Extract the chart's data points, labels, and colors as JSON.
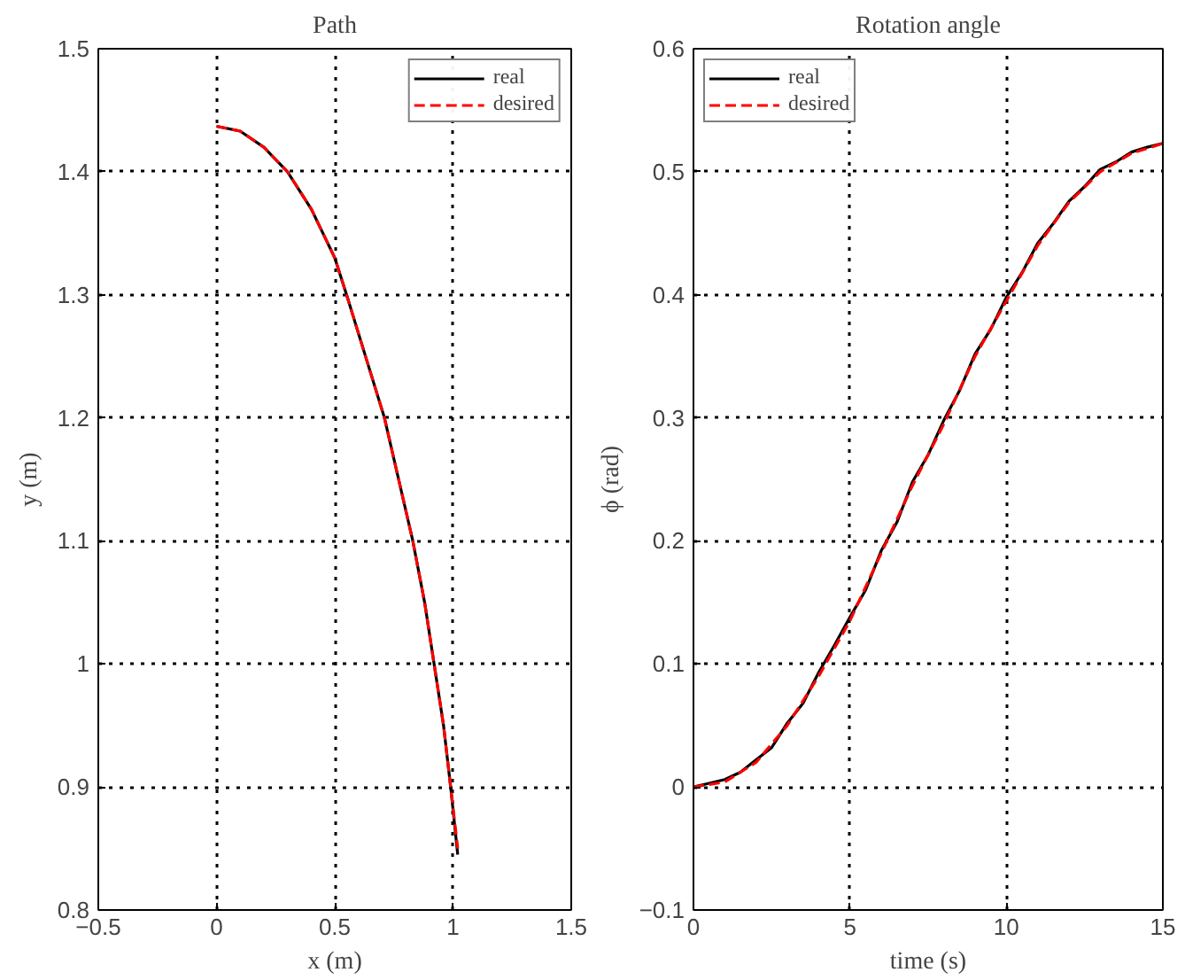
{
  "chart_data": [
    {
      "type": "line",
      "title": "Path",
      "xlabel": "x (m)",
      "ylabel": "y (m)",
      "xlim": [
        -0.5,
        1.5
      ],
      "ylim": [
        0.8,
        1.5
      ],
      "xticks": [
        -0.5,
        0,
        0.5,
        1,
        1.5
      ],
      "yticks": [
        0.8,
        0.9,
        1,
        1.1,
        1.2,
        1.3,
        1.4,
        1.5
      ],
      "grid": true,
      "legend": "top right",
      "x": [
        0,
        0.1,
        0.2,
        0.3,
        0.4,
        0.5,
        0.55,
        0.63,
        0.71,
        0.77,
        0.83,
        0.88,
        0.92,
        0.96,
        0.99,
        1.02
      ],
      "series": [
        {
          "name": "real",
          "color": "#000000",
          "line_style": "solid",
          "values": [
            1.437,
            1.433,
            1.42,
            1.4,
            1.37,
            1.33,
            1.3,
            1.25,
            1.2,
            1.15,
            1.1,
            1.05,
            1.0,
            0.95,
            0.9,
            0.845
          ]
        },
        {
          "name": "desired",
          "color": "#ff0000",
          "line_style": "dashed",
          "values": [
            1.437,
            1.433,
            1.42,
            1.4,
            1.37,
            1.33,
            1.3,
            1.25,
            1.2,
            1.15,
            1.1,
            1.05,
            1.0,
            0.95,
            0.9,
            0.85
          ]
        }
      ]
    },
    {
      "type": "line",
      "title": "Rotation angle",
      "xlabel": "time (s)",
      "ylabel": "ϕ (rad)",
      "xlim": [
        0,
        15
      ],
      "ylim": [
        -0.1,
        0.6
      ],
      "xticks": [
        0,
        5,
        10,
        15
      ],
      "yticks": [
        -0.1,
        0,
        0.1,
        0.2,
        0.3,
        0.4,
        0.5,
        0.6
      ],
      "grid": true,
      "legend": "top left",
      "series": [
        {
          "name": "real",
          "color": "#000000",
          "line_style": "solid",
          "x": [
            0,
            0.5,
            1,
            1.5,
            2,
            2.5,
            3,
            3.5,
            4,
            4.5,
            5,
            5.5,
            6,
            6.5,
            7,
            7.5,
            8,
            8.5,
            9,
            9.5,
            10,
            10.5,
            11,
            11.5,
            12,
            12.5,
            13,
            13.5,
            14,
            14.5,
            15
          ],
          "values": [
            0,
            0.003,
            0.006,
            0.012,
            0.022,
            0.032,
            0.052,
            0.068,
            0.093,
            0.115,
            0.138,
            0.16,
            0.192,
            0.215,
            0.248,
            0.27,
            0.298,
            0.322,
            0.352,
            0.372,
            0.398,
            0.418,
            0.442,
            0.458,
            0.476,
            0.488,
            0.502,
            0.508,
            0.516,
            0.52,
            0.523
          ]
        },
        {
          "name": "desired",
          "color": "#ff0000",
          "line_style": "dashed",
          "x": [
            0,
            1,
            2,
            3,
            4,
            5,
            6,
            7,
            8,
            9,
            10,
            11,
            12,
            13,
            14,
            15
          ],
          "values": [
            0,
            0.004,
            0.02,
            0.05,
            0.09,
            0.135,
            0.19,
            0.245,
            0.295,
            0.35,
            0.395,
            0.44,
            0.475,
            0.5,
            0.515,
            0.523
          ]
        }
      ]
    }
  ]
}
